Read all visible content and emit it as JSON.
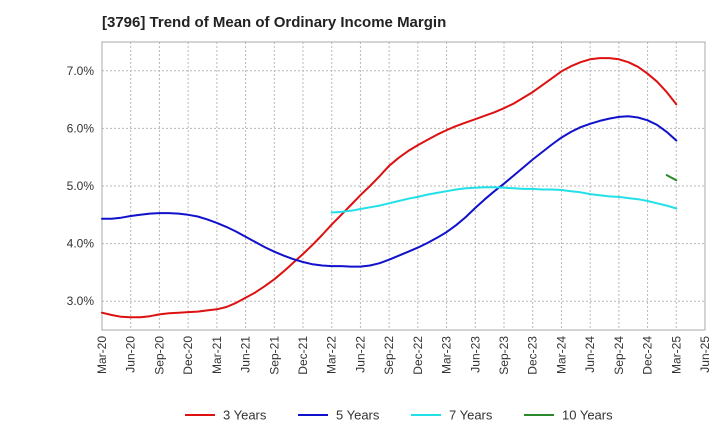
{
  "chart_data": {
    "type": "line",
    "title": "[3796]  Trend of Mean of Ordinary Income Margin",
    "xlabel": "",
    "ylabel": "",
    "x_ticks": [
      "Mar-20",
      "Jun-20",
      "Sep-20",
      "Dec-20",
      "Mar-21",
      "Jun-21",
      "Sep-21",
      "Dec-21",
      "Mar-22",
      "Jun-22",
      "Sep-22",
      "Dec-22",
      "Mar-23",
      "Jun-23",
      "Sep-23",
      "Dec-23",
      "Mar-24",
      "Jun-24",
      "Sep-24",
      "Dec-24",
      "Mar-25",
      "Jun-25"
    ],
    "y_ticks": [
      "3.0%",
      "4.0%",
      "5.0%",
      "6.0%",
      "7.0%"
    ],
    "y_tick_values": [
      3.0,
      4.0,
      5.0,
      6.0,
      7.0
    ],
    "ylim": [
      2.5,
      7.5
    ],
    "grid": true,
    "legend_position": "bottom",
    "series": [
      {
        "name": "3 Years",
        "color": "#dd1111",
        "x": [
          "Mar-20",
          "Apr-20",
          "May-20",
          "Jun-20",
          "Jul-20",
          "Aug-20",
          "Sep-20",
          "Oct-20",
          "Nov-20",
          "Dec-20",
          "Jan-21",
          "Feb-21",
          "Mar-21",
          "Apr-21",
          "May-21",
          "Jun-21",
          "Jul-21",
          "Aug-21",
          "Sep-21",
          "Oct-21",
          "Nov-21",
          "Dec-21",
          "Jan-22",
          "Feb-22",
          "Mar-22",
          "Apr-22",
          "May-22",
          "Jun-22",
          "Jul-22",
          "Aug-22",
          "Sep-22",
          "Oct-22",
          "Nov-22",
          "Dec-22",
          "Jan-23",
          "Feb-23",
          "Mar-23",
          "Apr-23",
          "May-23",
          "Jun-23",
          "Jul-23",
          "Aug-23",
          "Sep-23",
          "Oct-23",
          "Nov-23",
          "Dec-23",
          "Jan-24",
          "Feb-24",
          "Mar-24",
          "Apr-24",
          "May-24",
          "Jun-24",
          "Jul-24",
          "Aug-24",
          "Sep-24",
          "Oct-24",
          "Nov-24",
          "Dec-24",
          "Jan-25",
          "Feb-25",
          "Mar-25"
        ],
        "values": [
          2.8,
          2.76,
          2.73,
          2.72,
          2.72,
          2.74,
          2.77,
          2.79,
          2.8,
          2.81,
          2.82,
          2.84,
          2.86,
          2.9,
          2.97,
          3.06,
          3.15,
          3.26,
          3.38,
          3.52,
          3.67,
          3.82,
          3.98,
          4.15,
          4.33,
          4.5,
          4.67,
          4.84,
          5.0,
          5.17,
          5.35,
          5.49,
          5.61,
          5.71,
          5.8,
          5.89,
          5.97,
          6.04,
          6.1,
          6.16,
          6.22,
          6.28,
          6.35,
          6.43,
          6.53,
          6.63,
          6.75,
          6.87,
          6.99,
          7.08,
          7.15,
          7.2,
          7.22,
          7.22,
          7.2,
          7.15,
          7.07,
          6.95,
          6.81,
          6.63,
          6.42
        ]
      },
      {
        "name": "5 Years",
        "color": "#1111cc",
        "x": [
          "Mar-20",
          "Apr-20",
          "May-20",
          "Jun-20",
          "Jul-20",
          "Aug-20",
          "Sep-20",
          "Oct-20",
          "Nov-20",
          "Dec-20",
          "Jan-21",
          "Feb-21",
          "Mar-21",
          "Apr-21",
          "May-21",
          "Jun-21",
          "Jul-21",
          "Aug-21",
          "Sep-21",
          "Oct-21",
          "Nov-21",
          "Dec-21",
          "Jan-22",
          "Feb-22",
          "Mar-22",
          "Apr-22",
          "May-22",
          "Jun-22",
          "Jul-22",
          "Aug-22",
          "Sep-22",
          "Oct-22",
          "Nov-22",
          "Dec-22",
          "Jan-23",
          "Feb-23",
          "Mar-23",
          "Apr-23",
          "May-23",
          "Jun-23",
          "Jul-23",
          "Aug-23",
          "Sep-23",
          "Oct-23",
          "Nov-23",
          "Dec-23",
          "Jan-24",
          "Feb-24",
          "Mar-24",
          "Apr-24",
          "May-24",
          "Jun-24",
          "Jul-24",
          "Aug-24",
          "Sep-24",
          "Oct-24",
          "Nov-24",
          "Dec-24",
          "Jan-25",
          "Feb-25",
          "Mar-25"
        ],
        "values": [
          4.43,
          4.43,
          4.45,
          4.48,
          4.5,
          4.52,
          4.53,
          4.53,
          4.52,
          4.5,
          4.47,
          4.42,
          4.36,
          4.29,
          4.21,
          4.12,
          4.03,
          3.94,
          3.86,
          3.79,
          3.73,
          3.68,
          3.64,
          3.62,
          3.61,
          3.61,
          3.6,
          3.6,
          3.62,
          3.66,
          3.72,
          3.79,
          3.86,
          3.93,
          4.01,
          4.1,
          4.2,
          4.32,
          4.46,
          4.62,
          4.77,
          4.91,
          5.04,
          5.18,
          5.32,
          5.46,
          5.59,
          5.72,
          5.84,
          5.94,
          6.02,
          6.08,
          6.13,
          6.17,
          6.2,
          6.21,
          6.19,
          6.14,
          6.06,
          5.94,
          5.79
        ]
      },
      {
        "name": "7 Years",
        "color": "#22e0e8",
        "x": [
          "Mar-22",
          "Apr-22",
          "May-22",
          "Jun-22",
          "Jul-22",
          "Aug-22",
          "Sep-22",
          "Oct-22",
          "Nov-22",
          "Dec-22",
          "Jan-23",
          "Feb-23",
          "Mar-23",
          "Apr-23",
          "May-23",
          "Jun-23",
          "Jul-23",
          "Aug-23",
          "Sep-23",
          "Oct-23",
          "Nov-23",
          "Dec-23",
          "Jan-24",
          "Feb-24",
          "Mar-24",
          "Apr-24",
          "May-24",
          "Jun-24",
          "Jul-24",
          "Aug-24",
          "Sep-24",
          "Oct-24",
          "Nov-24",
          "Dec-24",
          "Jan-25",
          "Feb-25",
          "Mar-25"
        ],
        "values": [
          4.54,
          4.55,
          4.57,
          4.6,
          4.63,
          4.66,
          4.7,
          4.74,
          4.78,
          4.81,
          4.85,
          4.88,
          4.91,
          4.94,
          4.96,
          4.97,
          4.98,
          4.98,
          4.97,
          4.96,
          4.95,
          4.95,
          4.94,
          4.94,
          4.93,
          4.91,
          4.89,
          4.86,
          4.84,
          4.82,
          4.81,
          4.79,
          4.77,
          4.74,
          4.7,
          4.66,
          4.61
        ]
      },
      {
        "name": "10 Years",
        "color": "#2a8a2a",
        "x": [
          "Feb-25",
          "Mar-25"
        ],
        "values": [
          5.19,
          5.1
        ]
      }
    ]
  }
}
